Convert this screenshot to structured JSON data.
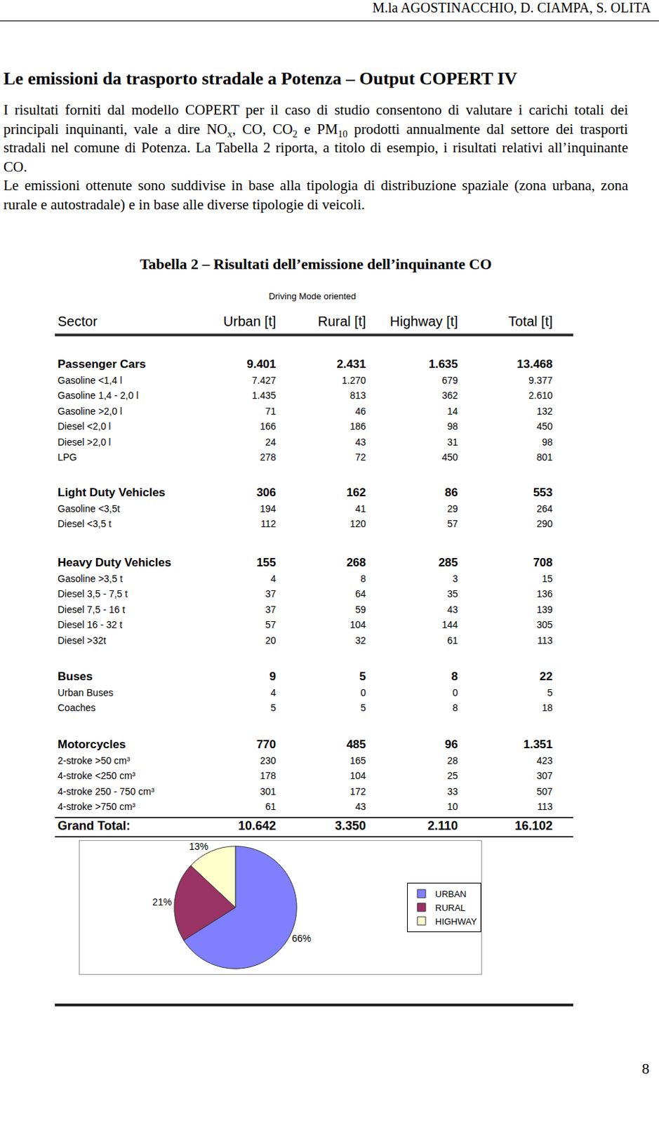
{
  "header": {
    "authors": "M.la AGOSTINACCHIO, D. CIAMPA, S. OLITA"
  },
  "section_title": "Le emissioni da trasporto stradale a Potenza – Output COPERT IV",
  "paragraphs": [
    [
      "I risultati forniti dal modello COPERT per il caso di studio consentono di valutare i carichi totali dei principali inquinanti, vale a dire NO",
      {
        "sub": "x"
      },
      ", CO, CO",
      {
        "sub": "2"
      },
      " e PM",
      {
        "sub": "10"
      },
      " prodotti annualmente dal settore dei trasporti stradali nel comune di Potenza. La Tabella 2 riporta, a titolo di esempio,  i risultati relativi all’inquinante CO."
    ],
    [
      "Le emissioni ottenute sono suddivise in base alla tipologia di distribuzione spaziale (zona urbana, zona rurale e autostradale) e in base alle diverse tipologie di veicoli."
    ]
  ],
  "table_title": "Tabella 2 – Risultati dell’emissione dell’inquinante CO",
  "table": {
    "note": "Driving Mode oriented",
    "header": [
      "Sector",
      "Urban [t]",
      "Rural [t]",
      "Highway [t]",
      "Total [t]"
    ],
    "groups": [
      {
        "name": "Passenger Cars",
        "values": [
          "9.401",
          "2.431",
          "1.635",
          "13.468"
        ],
        "rows": [
          [
            "Gasoline <1,4 l",
            "7.427",
            "1.270",
            "679",
            "9.377"
          ],
          [
            "Gasoline 1,4 - 2,0 l",
            "1.435",
            "813",
            "362",
            "2.610"
          ],
          [
            "Gasoline >2,0 l",
            "71",
            "46",
            "14",
            "132"
          ],
          [
            "Diesel <2,0 l",
            "166",
            "186",
            "98",
            "450"
          ],
          [
            "Diesel >2,0 l",
            "24",
            "43",
            "31",
            "98"
          ],
          [
            "LPG",
            "278",
            "72",
            "450",
            "801"
          ]
        ]
      },
      {
        "name": "Light Duty Vehicles",
        "values": [
          "306",
          "162",
          "86",
          "553"
        ],
        "rows": [
          [
            "Gasoline <3,5t",
            "194",
            "41",
            "29",
            "264"
          ],
          [
            "Diesel <3,5 t",
            "112",
            "120",
            "57",
            "290"
          ]
        ]
      },
      {
        "name": "Heavy Duty Vehicles",
        "values": [
          "155",
          "268",
          "285",
          "708"
        ],
        "rows": [
          [
            "Gasoline >3,5 t",
            "4",
            "8",
            "3",
            "15"
          ],
          [
            "Diesel 3,5 - 7,5 t",
            "37",
            "64",
            "35",
            "136"
          ],
          [
            "Diesel 7,5 - 16 t",
            "37",
            "59",
            "43",
            "139"
          ],
          [
            "Diesel 16 - 32 t",
            "57",
            "104",
            "144",
            "305"
          ],
          [
            "Diesel >32t",
            "20",
            "32",
            "61",
            "113"
          ]
        ]
      },
      {
        "name": "Buses",
        "values": [
          "9",
          "5",
          "8",
          "22"
        ],
        "rows": [
          [
            "Urban Buses",
            "4",
            "0",
            "0",
            "5"
          ],
          [
            "Coaches",
            "5",
            "5",
            "8",
            "18"
          ]
        ]
      },
      {
        "name": "Motorcycles",
        "values": [
          "770",
          "485",
          "96",
          "1.351"
        ],
        "rows": [
          [
            "2-stroke >50 cm³",
            "230",
            "165",
            "28",
            "423"
          ],
          [
            "4-stroke <250 cm³",
            "178",
            "104",
            "25",
            "307"
          ],
          [
            "4-stroke 250 - 750 cm³",
            "301",
            "172",
            "33",
            "507"
          ],
          [
            "4-stroke >750 cm³",
            "61",
            "43",
            "10",
            "113"
          ]
        ]
      }
    ],
    "grand_total": [
      "Grand Total:",
      "10.642",
      "3.350",
      "2.110",
      "16.102"
    ]
  },
  "chart_data": {
    "type": "pie",
    "categories": [
      "URBAN",
      "RURAL",
      "HIGHWAY"
    ],
    "values": [
      66,
      21,
      13
    ],
    "value_labels": [
      "66%",
      "21%",
      "13%"
    ],
    "colors": [
      "#8080ff",
      "#993366",
      "#ffffcc"
    ],
    "data_labels": true,
    "legend": "right"
  },
  "page_number": "8"
}
